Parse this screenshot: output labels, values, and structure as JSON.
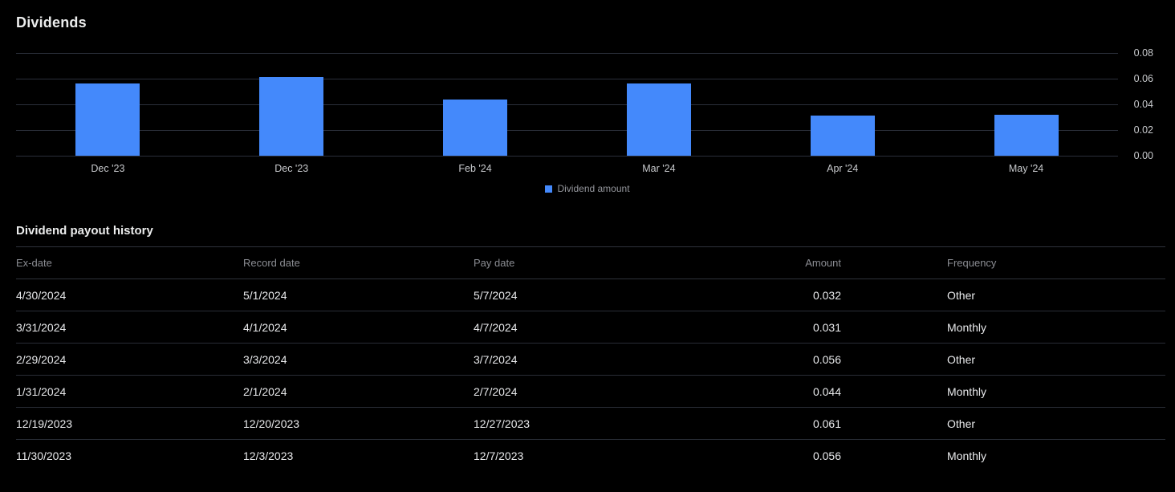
{
  "page": {
    "title": "Dividends"
  },
  "chart_data": {
    "type": "bar",
    "title": "Dividends",
    "categories": [
      "Dec '23",
      "Dec '23",
      "Feb '24",
      "Mar '24",
      "Apr '24",
      "May '24"
    ],
    "values": [
      0.056,
      0.061,
      0.044,
      0.056,
      0.031,
      0.032
    ],
    "series_name": "Dividend amount",
    "xlabel": "",
    "ylabel": "",
    "ylim": [
      0,
      0.08
    ],
    "y_ticks": [
      "0.08",
      "0.06",
      "0.04",
      "0.02",
      "0.00"
    ],
    "grid": true,
    "legend_position": "bottom-center",
    "bar_color": "#4489fb"
  },
  "legend": {
    "label": "Dividend amount"
  },
  "table": {
    "title": "Dividend payout history",
    "columns": [
      {
        "key": "ex_date",
        "label": "Ex-date"
      },
      {
        "key": "record_date",
        "label": "Record date"
      },
      {
        "key": "pay_date",
        "label": "Pay date"
      },
      {
        "key": "amount",
        "label": "Amount"
      },
      {
        "key": "frequency",
        "label": "Frequency"
      }
    ],
    "rows": [
      {
        "ex_date": "4/30/2024",
        "record_date": "5/1/2024",
        "pay_date": "5/7/2024",
        "amount": "0.032",
        "frequency": "Other"
      },
      {
        "ex_date": "3/31/2024",
        "record_date": "4/1/2024",
        "pay_date": "4/7/2024",
        "amount": "0.031",
        "frequency": "Monthly"
      },
      {
        "ex_date": "2/29/2024",
        "record_date": "3/3/2024",
        "pay_date": "3/7/2024",
        "amount": "0.056",
        "frequency": "Other"
      },
      {
        "ex_date": "1/31/2024",
        "record_date": "2/1/2024",
        "pay_date": "2/7/2024",
        "amount": "0.044",
        "frequency": "Monthly"
      },
      {
        "ex_date": "12/19/2023",
        "record_date": "12/20/2023",
        "pay_date": "12/27/2023",
        "amount": "0.061",
        "frequency": "Other"
      },
      {
        "ex_date": "11/30/2023",
        "record_date": "12/3/2023",
        "pay_date": "12/7/2023",
        "amount": "0.056",
        "frequency": "Monthly"
      }
    ]
  }
}
